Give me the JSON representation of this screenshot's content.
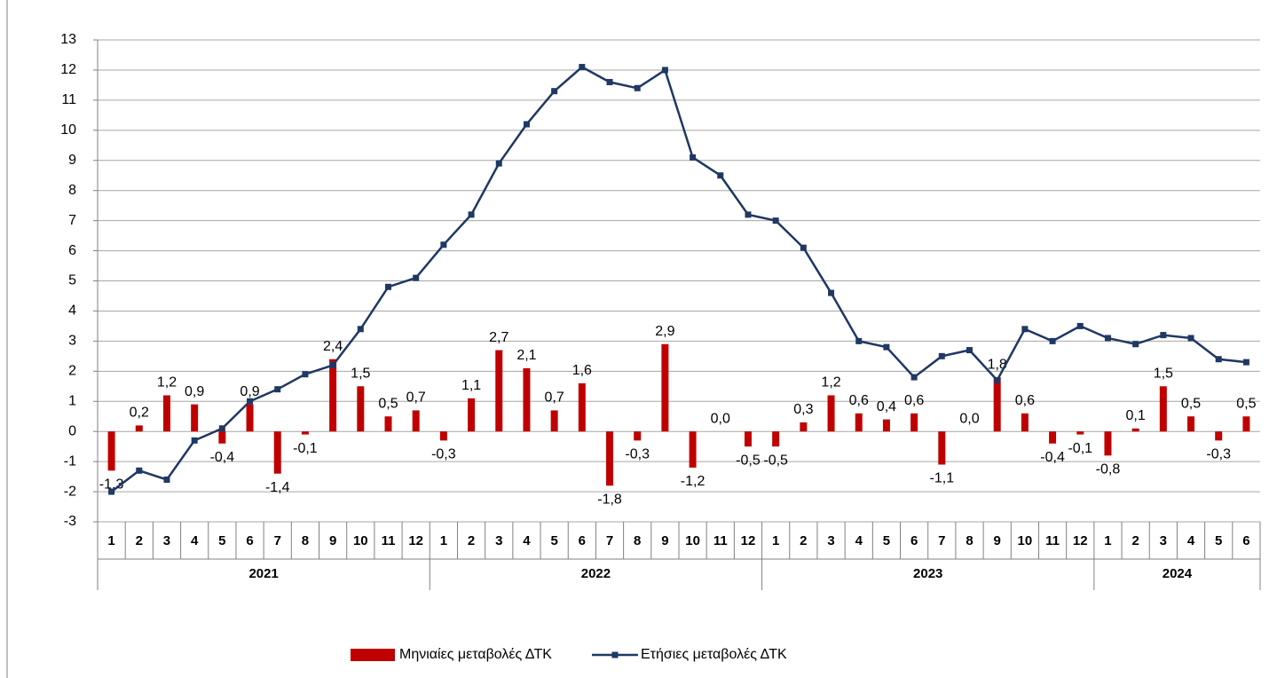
{
  "chart_data": {
    "type": "bar_line",
    "categories": [
      "1",
      "2",
      "3",
      "4",
      "5",
      "6",
      "7",
      "8",
      "9",
      "10",
      "11",
      "12",
      "1",
      "2",
      "3",
      "4",
      "5",
      "6",
      "7",
      "8",
      "9",
      "10",
      "11",
      "12",
      "1",
      "2",
      "3",
      "4",
      "5",
      "6",
      "7",
      "8",
      "9",
      "10",
      "11",
      "12",
      "1",
      "2",
      "3",
      "4",
      "5",
      "6"
    ],
    "groups": [
      "2021",
      "2022",
      "2023",
      "2024"
    ],
    "series": [
      {
        "name": "Μηνιαίες μεταβολές ΔΤΚ",
        "type": "bar",
        "color": "#c00000",
        "values": [
          -1.3,
          0.2,
          1.2,
          0.9,
          -0.4,
          0.9,
          -1.4,
          -0.1,
          2.4,
          1.5,
          0.5,
          0.7,
          -0.3,
          1.1,
          2.7,
          2.1,
          0.7,
          1.6,
          -1.8,
          -0.3,
          2.9,
          -1.2,
          0.0,
          -0.5,
          -0.5,
          0.3,
          1.2,
          0.6,
          0.4,
          0.6,
          -1.1,
          0.0,
          1.8,
          0.6,
          -0.4,
          -0.1,
          -0.8,
          0.1,
          1.5,
          0.5,
          -0.3,
          0.5
        ],
        "value_labels": [
          "-1,3",
          "0,2",
          "1,2",
          "0,9",
          "-0,4",
          "0,9",
          "-1,4",
          "-0,1",
          "2,4",
          "1,5",
          "0,5",
          "0,7",
          "-0,3",
          "1,1",
          "2,7",
          "2,1",
          "0,7",
          "1,6",
          "-1,8",
          "-0,3",
          "2,9",
          "-1,2",
          "0,0",
          "-0,5",
          "-0,5",
          "0,3",
          "1,2",
          "0,6",
          "0,4",
          "0,6",
          "-1,1",
          "0,0",
          "1,8",
          "0,6",
          "-0,4",
          "-0,1",
          "-0,8",
          "0,1",
          "1,5",
          "0,5",
          "-0,3",
          "0,5"
        ]
      },
      {
        "name": "Ετήσιες μεταβολές ΔΤΚ",
        "type": "line",
        "color": "#1f3864",
        "values": [
          -2.0,
          -1.3,
          -1.6,
          -0.3,
          0.1,
          1.0,
          1.4,
          1.9,
          2.2,
          3.4,
          4.8,
          5.1,
          6.2,
          7.2,
          8.9,
          10.2,
          11.3,
          12.1,
          11.6,
          11.4,
          12.0,
          9.1,
          8.5,
          7.2,
          7.0,
          6.1,
          4.6,
          3.0,
          2.8,
          1.8,
          2.5,
          2.7,
          1.7,
          3.4,
          3.0,
          3.5,
          3.1,
          2.9,
          3.2,
          3.1,
          2.4,
          2.3
        ]
      }
    ],
    "ylim": [
      -3,
      13
    ],
    "yticks": [
      -3,
      -2,
      -1,
      0,
      1,
      2,
      3,
      4,
      5,
      6,
      7,
      8,
      9,
      10,
      11,
      12,
      13
    ],
    "grid": true,
    "legend": "bottom"
  }
}
